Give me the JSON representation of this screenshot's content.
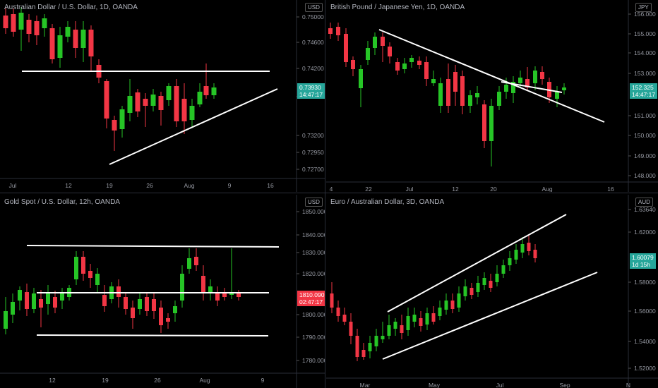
{
  "panes": [
    {
      "id": "audusd",
      "title": "Australian Dollar / U.S. Dollar, 1D, OANDA",
      "currency": "USD",
      "price_ticks": [
        "0.75000",
        "0.74600",
        "0.74200",
        "0.73800",
        "0.73200",
        "0.72950",
        "0.72700"
      ],
      "date_ticks": [
        "Jul",
        "12",
        "19",
        "26",
        "Aug",
        "9",
        "16"
      ],
      "last_price": "0.73930",
      "countdown": "14:47:17",
      "tag_color": "#26a69a"
    },
    {
      "id": "gbpjpy",
      "title": "British Pound / Japanese Yen, 1D, OANDA",
      "currency": "JPY",
      "price_ticks": [
        "156.000",
        "155.000",
        "154.000",
        "153.000",
        "151.000",
        "150.000",
        "149.000",
        "148.000"
      ],
      "date_ticks": [
        "4",
        "22",
        "Jul",
        "12",
        "20",
        "Aug",
        "16"
      ],
      "last_price": "152.325",
      "countdown": "14:47:17",
      "tag_color": "#26a69a"
    },
    {
      "id": "xauusd",
      "title": "Gold Spot / U.S. Dollar, 12h, OANDA",
      "currency": "USD",
      "price_ticks": [
        "1850.000",
        "1840.000",
        "1830.000",
        "1820.000",
        "1800.000",
        "1790.000",
        "1780.000"
      ],
      "date_ticks": [
        "12",
        "19",
        "26",
        "Aug",
        "9"
      ],
      "last_price": "1810.090",
      "countdown": "02:47:17",
      "tag_color": "#f23645"
    },
    {
      "id": "euraud",
      "title": "Euro / Australian Dollar, 3D, OANDA",
      "currency": "AUD",
      "price_ticks": [
        "1.63640",
        "1.62000",
        "1.58000",
        "1.56000",
        "1.54000",
        "1.52000"
      ],
      "date_ticks": [
        "Mar",
        "May",
        "Jul",
        "Sep",
        "N"
      ],
      "last_price": "1.60079",
      "countdown": "1d 15h",
      "tag_color": "#26a69a"
    }
  ]
}
